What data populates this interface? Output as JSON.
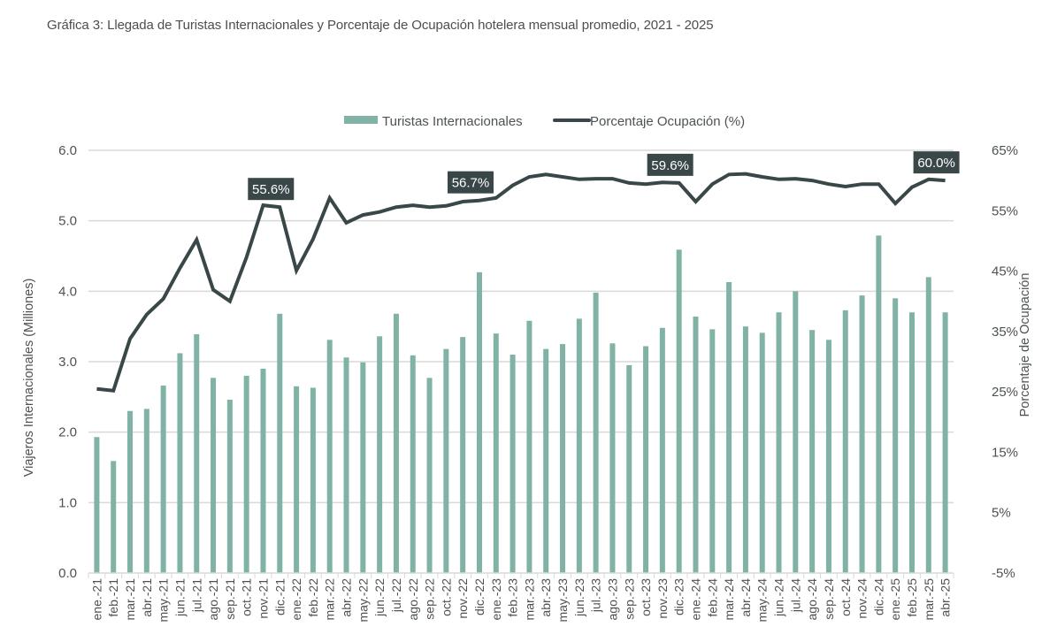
{
  "title": "Gráfica 3: Llegada de Turistas Internacionales y Porcentaje de Ocupación hotelera mensual promedio, 2021 - 2025",
  "colors": {
    "bar": "#80b3a5",
    "line": "#3a4748",
    "grid": "#d9d9d9",
    "annotation_bg": "#3a4748"
  },
  "chart_data": {
    "type": "bar+line",
    "title": "Gráfica 3: Llegada de Turistas Internacionales y Porcentaje de Ocupación hotelera mensual promedio, 2021 - 2025",
    "xlabel": "",
    "ylabel": "Viajeros Internacionales  (Milliones)",
    "y2label": "Porcentaje de Ocupación",
    "ylim": [
      0,
      6
    ],
    "y2lim": [
      -5,
      65
    ],
    "yticks": [
      "0.0",
      "1.0",
      "2.0",
      "3.0",
      "4.0",
      "5.0",
      "6.0"
    ],
    "y2ticks": [
      "-5%",
      "5%",
      "15%",
      "25%",
      "35%",
      "45%",
      "55%",
      "65%"
    ],
    "grid": true,
    "legend_position": "top-center",
    "categories": [
      "ene.-21",
      "feb.-21",
      "mar.-21",
      "abr.-21",
      "may.-21",
      "jun.-21",
      "jul.-21",
      "ago.-21",
      "sep.-21",
      "oct.-21",
      "nov.-21",
      "dic.-21",
      "ene.-22",
      "feb.-22",
      "mar.-22",
      "abr.-22",
      "may.-22",
      "jun.-22",
      "jul.-22",
      "ago.-22",
      "sep.-22",
      "oct.-22",
      "nov.-22",
      "dic.-22",
      "ene.-23",
      "feb.-23",
      "mar.-23",
      "abr.-23",
      "may.-23",
      "jun.-23",
      "jul.-23",
      "ago.-23",
      "sep.-23",
      "oct.-23",
      "nov.-23",
      "dic.-23",
      "ene.-24",
      "feb.-24",
      "mar.-24",
      "abr.-24",
      "may.-24",
      "jun.-24",
      "jul.-24",
      "ago.-24",
      "sep.-24",
      "oct.-24",
      "nov.-24",
      "dic.-24",
      "ene.-25",
      "feb.-25",
      "mar.-25",
      "abr.-25"
    ],
    "series": [
      {
        "name": "Turistas Internacionales",
        "type": "bar",
        "axis": "left",
        "values": [
          1.93,
          1.59,
          2.3,
          2.33,
          2.66,
          3.12,
          3.39,
          2.77,
          2.46,
          2.8,
          2.9,
          3.68,
          2.65,
          2.63,
          3.31,
          3.06,
          2.99,
          3.36,
          3.68,
          3.09,
          2.77,
          3.18,
          3.35,
          4.27,
          3.4,
          3.1,
          3.58,
          3.18,
          3.25,
          3.61,
          3.98,
          3.26,
          2.95,
          3.22,
          3.48,
          4.59,
          3.64,
          3.46,
          4.13,
          3.5,
          3.41,
          3.7,
          4.0,
          3.45,
          3.31,
          3.73,
          3.94,
          4.79,
          3.9,
          3.7,
          4.2,
          3.7
        ]
      },
      {
        "name": "Porcentaje Ocupación (%)",
        "type": "line",
        "axis": "right",
        "values": [
          25.5,
          25.2,
          33.8,
          37.8,
          40.4,
          45.5,
          50.2,
          41.9,
          40.0,
          47.3,
          55.9,
          55.6,
          45.1,
          50.3,
          57.1,
          53.0,
          54.3,
          54.8,
          55.6,
          55.9,
          55.6,
          55.8,
          56.5,
          56.7,
          57.1,
          59.2,
          60.6,
          61.0,
          60.6,
          60.2,
          60.3,
          60.3,
          59.6,
          59.4,
          59.7,
          59.6,
          56.5,
          59.4,
          61.0,
          61.1,
          60.6,
          60.2,
          60.3,
          60.0,
          59.4,
          59.0,
          59.4,
          59.4,
          56.2,
          58.9,
          60.2,
          60.0
        ]
      }
    ],
    "annotations": [
      {
        "category": "dic.-21",
        "text": "55.6%"
      },
      {
        "category": "dic.-22",
        "text": "56.7%"
      },
      {
        "category": "dic.-23",
        "text": "59.6%"
      },
      {
        "category": "abr.-25",
        "text": "60.0%"
      }
    ]
  }
}
